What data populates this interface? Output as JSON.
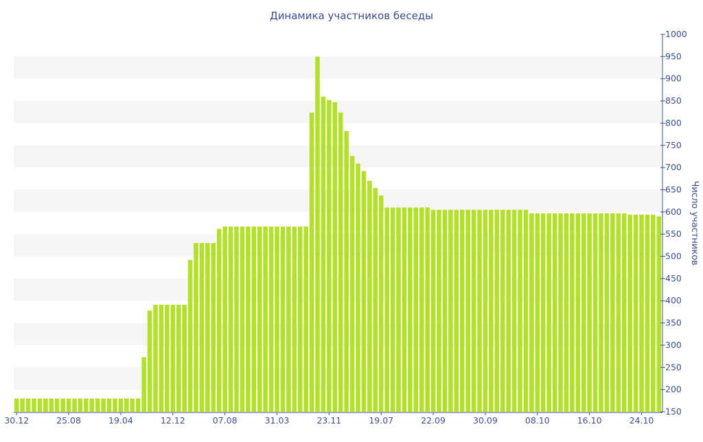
{
  "chart_data": {
    "type": "bar",
    "title": "Динамика участников беседы",
    "xlabel": "",
    "ylabel": "Число участников",
    "ylim": [
      150,
      1000
    ],
    "y_ticks": [
      150,
      200,
      250,
      300,
      350,
      400,
      450,
      500,
      550,
      600,
      650,
      700,
      750,
      800,
      850,
      900,
      950,
      1000
    ],
    "y_axis_position": "right",
    "grid": "alternating horizontal bands",
    "legend": "none",
    "colors": {
      "bar": "#b5df2d",
      "band": "#f6f6f6",
      "text": "#3d4f8a",
      "axis": "#3d4f8a"
    },
    "x_tick_labels": [
      {
        "label": "30.12",
        "index": 0
      },
      {
        "label": "25.08",
        "index": 9
      },
      {
        "label": "19.04",
        "index": 18
      },
      {
        "label": "12.12",
        "index": 27
      },
      {
        "label": "07.08",
        "index": 36
      },
      {
        "label": "31.03",
        "index": 45
      },
      {
        "label": "23.11",
        "index": 54
      },
      {
        "label": "19.07",
        "index": 63
      },
      {
        "label": "22.09",
        "index": 72
      },
      {
        "label": "30.09",
        "index": 81
      },
      {
        "label": "08.10",
        "index": 90
      },
      {
        "label": "16.10",
        "index": 99
      },
      {
        "label": "24.10",
        "index": 108
      }
    ],
    "values": [
      180,
      180,
      180,
      180,
      180,
      180,
      180,
      180,
      180,
      180,
      180,
      180,
      180,
      180,
      180,
      180,
      180,
      180,
      180,
      180,
      180,
      180,
      273,
      378,
      391,
      391,
      391,
      391,
      391,
      391,
      492,
      530,
      530,
      530,
      530,
      562,
      567,
      567,
      567,
      567,
      567,
      567,
      567,
      567,
      567,
      567,
      567,
      567,
      567,
      567,
      567,
      824,
      950,
      860,
      852,
      847,
      824,
      782,
      726,
      709,
      692,
      670,
      654,
      637,
      610,
      610,
      610,
      610,
      610,
      610,
      610,
      610,
      605,
      605,
      605,
      605,
      605,
      605,
      605,
      605,
      605,
      605,
      605,
      605,
      605,
      605,
      605,
      605,
      605,
      597,
      597,
      597,
      597,
      597,
      597,
      597,
      597,
      597,
      597,
      597,
      597,
      597,
      597,
      597,
      597,
      597,
      594,
      594,
      594,
      594,
      594,
      590
    ]
  }
}
